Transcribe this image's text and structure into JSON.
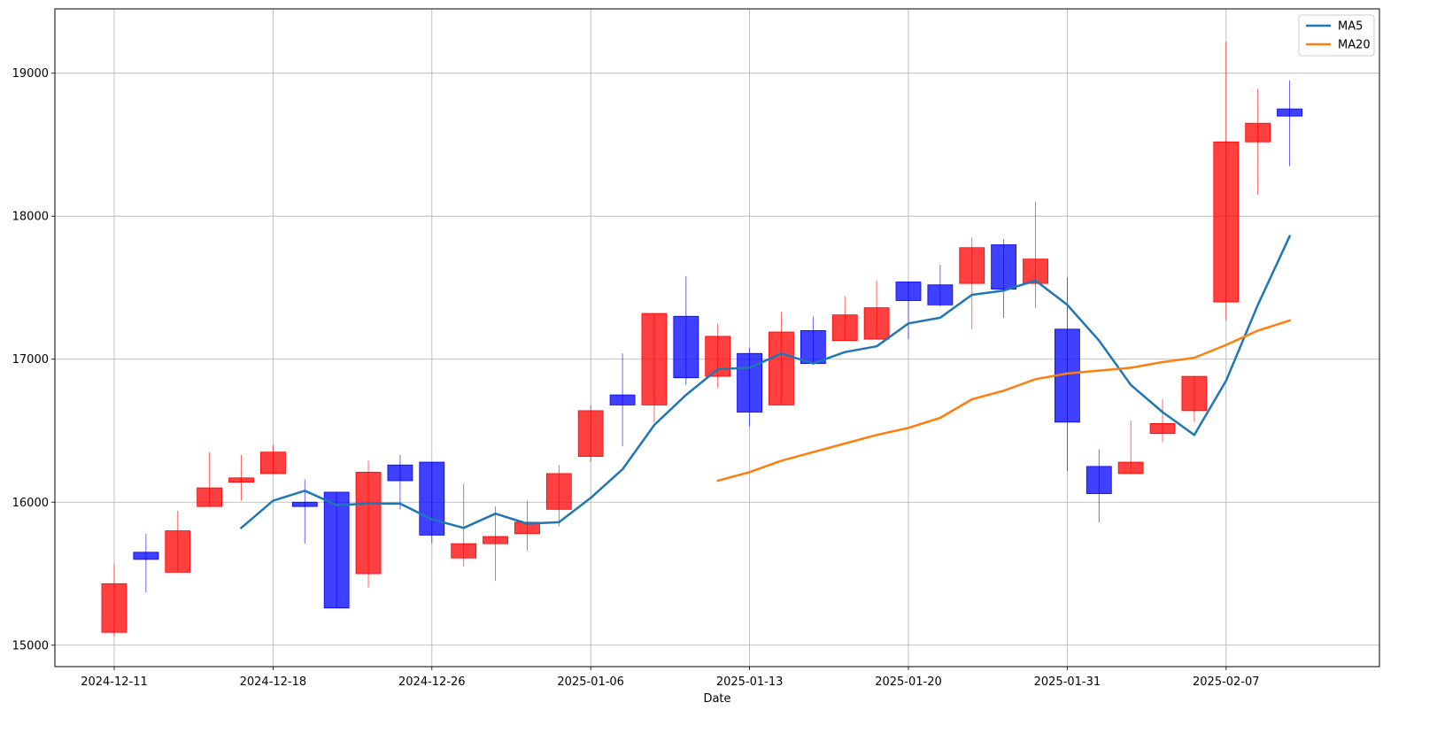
{
  "chart_data": {
    "type": "candlestick",
    "xlabel": "Date",
    "ylabel": "",
    "ylim": [
      14850,
      19450
    ],
    "grid": true,
    "legend_position": "top-right",
    "colors": {
      "up": "#ff0000",
      "down": "#0000ff",
      "ma5": "#1f77b4",
      "ma20": "#ff7f0e"
    },
    "x_ticks": [
      "2024-12-11",
      "2024-12-18",
      "2024-12-26",
      "2025-01-06",
      "2025-01-13",
      "2025-01-20",
      "2025-01-31",
      "2025-02-07"
    ],
    "x_tick_index": [
      0,
      5,
      10,
      15,
      20,
      25,
      30,
      35
    ],
    "y_ticks": [
      15000,
      16000,
      17000,
      18000,
      19000
    ],
    "y_tick_labels": [
      "15000",
      "16000",
      "17000",
      "18000",
      "19000"
    ],
    "candles": [
      {
        "o": 15090,
        "h": 15570,
        "l": 15060,
        "c": 15430
      },
      {
        "o": 15650,
        "h": 15780,
        "l": 15370,
        "c": 15600
      },
      {
        "o": 15510,
        "h": 15940,
        "l": 15510,
        "c": 15800
      },
      {
        "o": 15970,
        "h": 16350,
        "l": 15970,
        "c": 16100
      },
      {
        "o": 16140,
        "h": 16330,
        "l": 16010,
        "c": 16170
      },
      {
        "o": 16200,
        "h": 16400,
        "l": 16200,
        "c": 16350
      },
      {
        "o": 16000,
        "h": 16160,
        "l": 15710,
        "c": 15970
      },
      {
        "o": 16070,
        "h": 16070,
        "l": 15260,
        "c": 15260
      },
      {
        "o": 15500,
        "h": 16290,
        "l": 15400,
        "c": 16210
      },
      {
        "o": 16260,
        "h": 16330,
        "l": 15950,
        "c": 16150
      },
      {
        "o": 16280,
        "h": 16280,
        "l": 15710,
        "c": 15770
      },
      {
        "o": 15610,
        "h": 16130,
        "l": 15550,
        "c": 15710
      },
      {
        "o": 15710,
        "h": 15970,
        "l": 15450,
        "c": 15760
      },
      {
        "o": 15780,
        "h": 16010,
        "l": 15660,
        "c": 15860
      },
      {
        "o": 15950,
        "h": 16260,
        "l": 15830,
        "c": 16200
      },
      {
        "o": 16320,
        "h": 16680,
        "l": 16280,
        "c": 16640
      },
      {
        "o": 16750,
        "h": 17040,
        "l": 16390,
        "c": 16680
      },
      {
        "o": 16680,
        "h": 17320,
        "l": 16560,
        "c": 17320
      },
      {
        "o": 17300,
        "h": 17580,
        "l": 16820,
        "c": 16870
      },
      {
        "o": 16880,
        "h": 17250,
        "l": 16800,
        "c": 17160
      },
      {
        "o": 17040,
        "h": 17080,
        "l": 16530,
        "c": 16630
      },
      {
        "o": 16680,
        "h": 17330,
        "l": 16680,
        "c": 17190
      },
      {
        "o": 17200,
        "h": 17300,
        "l": 16960,
        "c": 16970
      },
      {
        "o": 17130,
        "h": 17440,
        "l": 17130,
        "c": 17310
      },
      {
        "o": 17140,
        "h": 17550,
        "l": 17140,
        "c": 17360
      },
      {
        "o": 17540,
        "h": 17540,
        "l": 17140,
        "c": 17410
      },
      {
        "o": 17520,
        "h": 17660,
        "l": 17370,
        "c": 17380
      },
      {
        "o": 17530,
        "h": 17850,
        "l": 17210,
        "c": 17780
      },
      {
        "o": 17800,
        "h": 17840,
        "l": 17290,
        "c": 17490
      },
      {
        "o": 17530,
        "h": 18100,
        "l": 17360,
        "c": 17700
      },
      {
        "o": 17210,
        "h": 17570,
        "l": 16220,
        "c": 16560
      },
      {
        "o": 16250,
        "h": 16370,
        "l": 15860,
        "c": 16060
      },
      {
        "o": 16200,
        "h": 16570,
        "l": 16200,
        "c": 16280
      },
      {
        "o": 16480,
        "h": 16720,
        "l": 16420,
        "c": 16550
      },
      {
        "o": 16640,
        "h": 16880,
        "l": 16560,
        "c": 16880
      },
      {
        "o": 17400,
        "h": 19220,
        "l": 17270,
        "c": 18520
      },
      {
        "o": 18520,
        "h": 18890,
        "l": 18150,
        "c": 18650
      },
      {
        "o": 18750,
        "h": 18950,
        "l": 18350,
        "c": 18700
      }
    ],
    "series": [
      {
        "name": "MA5",
        "values": [
          null,
          null,
          null,
          null,
          15820,
          16010,
          16080,
          15980,
          15990,
          15990,
          15880,
          15820,
          15920,
          15850,
          15860,
          16030,
          16230,
          16540,
          16750,
          16930,
          16940,
          17040,
          16970,
          17050,
          17090,
          17250,
          17290,
          17450,
          17480,
          17550,
          17380,
          17130,
          16820,
          16630,
          16470,
          16850,
          17380,
          17860
        ]
      },
      {
        "name": "MA20",
        "values": [
          null,
          null,
          null,
          null,
          null,
          null,
          null,
          null,
          null,
          null,
          null,
          null,
          null,
          null,
          null,
          null,
          null,
          null,
          null,
          16150,
          16210,
          16290,
          16350,
          16410,
          16470,
          16520,
          16590,
          16720,
          16780,
          16860,
          16900,
          16920,
          16940,
          16980,
          17010,
          17100,
          17200,
          17270
        ]
      }
    ]
  }
}
